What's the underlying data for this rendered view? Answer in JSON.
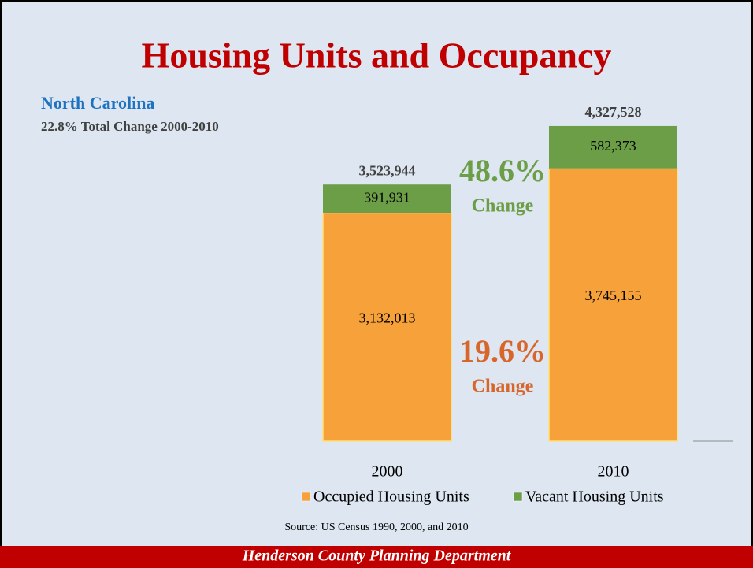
{
  "chart_data": {
    "type": "stacked-bar",
    "title": "Housing Units and Occupancy",
    "subtitle": "North Carolina",
    "subtitle2": "22.8% Total Change 2000-2010",
    "categories": [
      "2000",
      "2010"
    ],
    "series": [
      {
        "name": "Occupied Housing Units",
        "color": "#f7a13a",
        "values": [
          3132013,
          3745155
        ],
        "value_labels": [
          "3,132,013",
          "3,745,155"
        ]
      },
      {
        "name": "Vacant Housing Units",
        "color": "#6b9e47",
        "values": [
          391931,
          582373
        ],
        "value_labels": [
          "391,931",
          "582,373"
        ]
      }
    ],
    "totals": [
      3523944,
      4327528
    ],
    "total_labels": [
      "3,523,944",
      "4,327,528"
    ],
    "annotations": [
      {
        "text": "48.6%",
        "sub": "Change",
        "color": "#6b9e47"
      },
      {
        "text": "19.6%",
        "sub": "Change",
        "color": "#d8652a"
      }
    ],
    "ylim": [
      0,
      4500000
    ],
    "source": "Source: US Census 1990, 2000, and 2010",
    "footer": "Henderson County Planning Department"
  }
}
